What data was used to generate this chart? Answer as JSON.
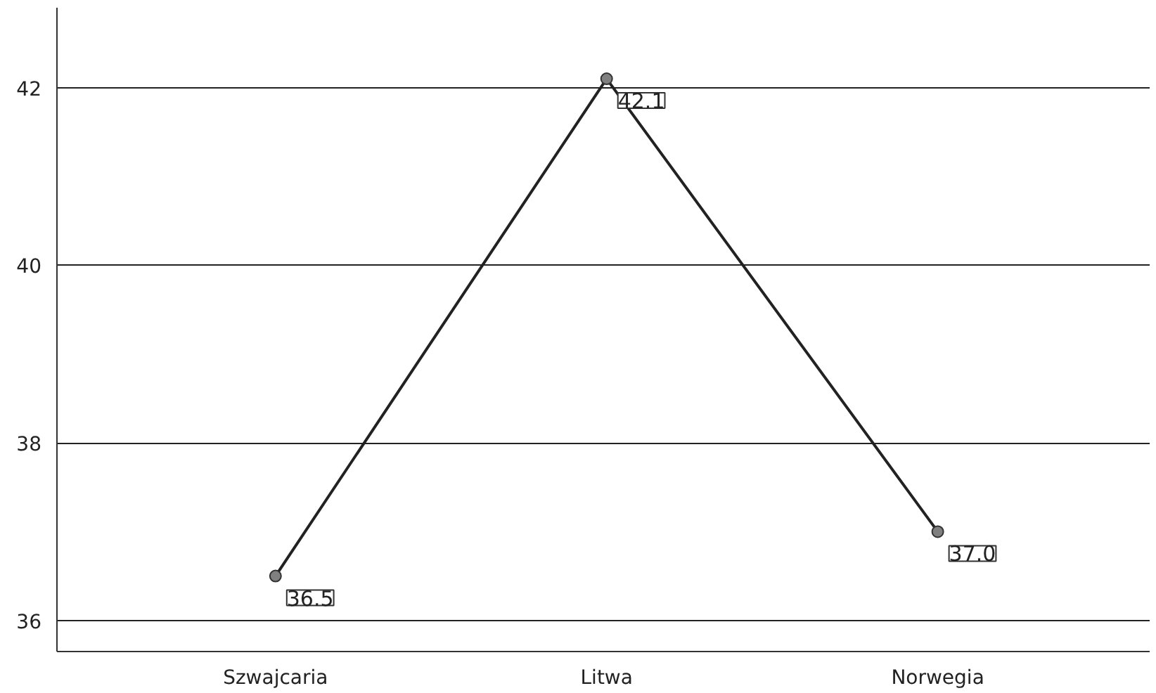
{
  "chart_data": {
    "type": "line",
    "categories": [
      "Szwajcaria",
      "Litwa",
      "Norwegia"
    ],
    "series": [
      {
        "color": "#222222",
        "values": [
          36.5,
          42.1,
          37.0
        ],
        "value_labels": [
          "36.5",
          "42.1",
          "37.0"
        ]
      }
    ],
    "ylim": [
      35.65,
      42.9
    ],
    "yticks": [
      36,
      38,
      40,
      42
    ],
    "grid": "y",
    "marker": "circle",
    "line_style": "solid"
  }
}
